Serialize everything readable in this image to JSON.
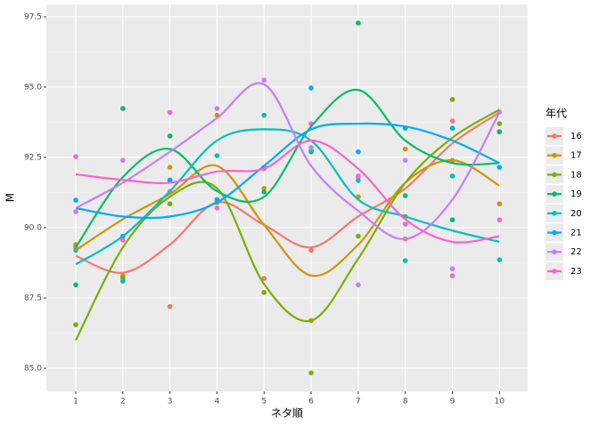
{
  "chart_data": {
    "type": "scatter",
    "x_label": "ネタ順",
    "y_label": "M",
    "legend_title": "年代",
    "x": [
      1,
      2,
      3,
      4,
      5,
      6,
      7,
      8,
      9,
      10
    ],
    "xlim": [
      0.375,
      10.6
    ],
    "xticks": [
      1,
      2,
      3,
      4,
      5,
      6,
      7,
      8,
      9,
      10
    ],
    "ylim": [
      84.18,
      97.94
    ],
    "yticks": [
      {
        "value": 85,
        "label": "85.0"
      },
      {
        "value": 87.5,
        "label": "87.5"
      },
      {
        "value": 90,
        "label": "90.0"
      },
      {
        "value": 92.5,
        "label": "92.5"
      },
      {
        "value": 95,
        "label": "95.0"
      },
      {
        "value": 97.5,
        "label": "97.5"
      }
    ],
    "grid": true,
    "legend": "right",
    "series": [
      {
        "name": "16",
        "color": "#F8766D",
        "values": [
          89.3,
          88.3,
          87.2,
          90.9,
          88.2,
          89.2,
          91.8,
          89.6,
          93.8,
          93.4
        ],
        "smooth": [
          89.0,
          88.4,
          89.4,
          90.9,
          90.1,
          89.3,
          90.4,
          91.4,
          93.0,
          94.1
        ]
      },
      {
        "name": "17",
        "color": "#CD9600",
        "values": [
          89.4,
          88.2,
          92.15,
          94.0,
          91.4,
          86.7,
          91.1,
          92.8,
          92.4,
          90.85
        ],
        "smooth": [
          89.2,
          90.3,
          91.2,
          92.2,
          90.1,
          88.3,
          89.4,
          91.6,
          92.4,
          91.5
        ]
      },
      {
        "name": "18",
        "color": "#7CAE00",
        "values": [
          86.55,
          88.25,
          90.85,
          90.9,
          87.7,
          84.84,
          89.7,
          90.4,
          94.56,
          93.7
        ],
        "smooth": [
          86.0,
          89.3,
          91.1,
          91.4,
          88.0,
          86.7,
          88.9,
          91.6,
          93.2,
          94.2
        ]
      },
      {
        "name": "19",
        "color": "#00BE67",
        "values": [
          87.97,
          94.24,
          93.26,
          91.0,
          91.27,
          92.7,
          97.28,
          91.14,
          90.28,
          93.42
        ],
        "smooth": [
          89.3,
          91.8,
          92.8,
          91.3,
          91.1,
          93.6,
          94.9,
          93.1,
          92.3,
          92.3
        ]
      },
      {
        "name": "20",
        "color": "#00BFC4",
        "values": [
          89.2,
          88.1,
          91.7,
          92.56,
          94.0,
          92.75,
          91.68,
          88.83,
          91.84,
          88.86
        ],
        "smooth": [
          88.7,
          89.7,
          91.3,
          93.1,
          93.5,
          93.1,
          91.0,
          90.4,
          89.9,
          89.5
        ]
      },
      {
        "name": "21",
        "color": "#00A9FF",
        "values": [
          90.98,
          89.7,
          91.68,
          91.0,
          92.15,
          94.97,
          92.7,
          93.54,
          93.54,
          92.15
        ],
        "smooth": [
          90.7,
          90.4,
          90.4,
          90.9,
          92.2,
          93.5,
          93.7,
          93.6,
          93.1,
          92.3
        ]
      },
      {
        "name": "22",
        "color": "#C77CFF",
        "values": [
          90.57,
          92.4,
          91.3,
          94.24,
          95.25,
          92.85,
          87.97,
          92.4,
          88.54,
          94.11
        ],
        "smooth": [
          90.7,
          91.6,
          92.7,
          93.9,
          95.1,
          92.2,
          90.6,
          89.6,
          91.0,
          94.1
        ]
      },
      {
        "name": "23",
        "color": "#FF61CC",
        "values": [
          92.53,
          89.56,
          94.1,
          90.7,
          92.1,
          93.7,
          91.84,
          90.13,
          88.29,
          90.28
        ],
        "smooth": [
          91.9,
          91.7,
          91.6,
          92.0,
          92.1,
          93.1,
          92.1,
          90.3,
          89.5,
          89.7
        ]
      }
    ]
  }
}
